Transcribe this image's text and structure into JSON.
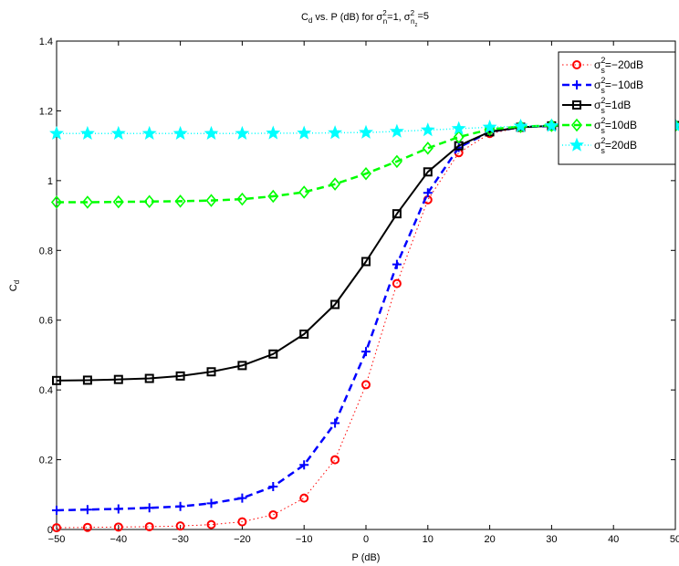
{
  "chart_data": {
    "type": "line",
    "title": {
      "prefix": "C",
      "prefix_sub": "d",
      "middle": " vs. P (dB) for σ",
      "sigma_n_sub": "n",
      "sigma_n_eq": "=1, σ",
      "sigma_nz_sub": "n",
      "sigma_nz_subsub": "z",
      "sigma_nz_eq": "=5"
    },
    "xlabel": "P (dB)",
    "ylabel": {
      "main": "C",
      "sub": "d"
    },
    "xlim": [
      -50,
      50
    ],
    "ylim": [
      0,
      1.4
    ],
    "x_ticks": [
      -50,
      -40,
      -30,
      -20,
      -10,
      0,
      10,
      20,
      30,
      40,
      50
    ],
    "x_tick_labels": [
      "−50",
      "−40",
      "−30",
      "−20",
      "−10",
      "0",
      "10",
      "20",
      "30",
      "40",
      "50"
    ],
    "y_ticks": [
      0,
      0.2,
      0.4,
      0.6,
      0.8,
      1,
      1.2,
      1.4
    ],
    "y_tick_labels": [
      "0",
      "0.2",
      "0.4",
      "0.6",
      "0.8",
      "1",
      "1.2",
      "1.4"
    ],
    "grid": false,
    "legend_position": "top-right",
    "x": [
      -50,
      -45,
      -40,
      -35,
      -30,
      -25,
      -20,
      -15,
      -10,
      -5,
      0,
      5,
      10,
      15,
      20,
      25,
      30,
      35,
      40,
      45,
      50
    ],
    "series": [
      {
        "legend_prefix": "σ",
        "legend_sub": "s",
        "legend_value": "=−20dB",
        "color": "#ff0000",
        "marker": "circle",
        "dash": "1.5,3",
        "width": 1,
        "values": [
          0.005,
          0.006,
          0.007,
          0.008,
          0.01,
          0.014,
          0.022,
          0.042,
          0.09,
          0.2,
          0.415,
          0.705,
          0.945,
          1.08,
          1.135,
          1.152,
          1.157,
          1.158,
          1.158,
          1.158,
          1.158
        ]
      },
      {
        "legend_prefix": "σ",
        "legend_sub": "s",
        "legend_value": "=−10dB",
        "color": "#0000ff",
        "marker": "plus",
        "dash": "8,5",
        "width": 2.5,
        "values": [
          0.055,
          0.057,
          0.059,
          0.062,
          0.066,
          0.075,
          0.09,
          0.123,
          0.185,
          0.305,
          0.51,
          0.76,
          0.965,
          1.095,
          1.14,
          1.153,
          1.157,
          1.158,
          1.158,
          1.158,
          1.158
        ]
      },
      {
        "legend_prefix": "σ",
        "legend_sub": "s",
        "legend_value": "=1dB",
        "color": "#000000",
        "marker": "square",
        "dash": "",
        "width": 2,
        "values": [
          0.427,
          0.428,
          0.43,
          0.433,
          0.44,
          0.452,
          0.47,
          0.503,
          0.56,
          0.645,
          0.768,
          0.905,
          1.025,
          1.1,
          1.14,
          1.153,
          1.157,
          1.158,
          1.158,
          1.158,
          1.158
        ]
      },
      {
        "legend_prefix": "σ",
        "legend_sub": "s",
        "legend_value": "=10dB",
        "color": "#00ff00",
        "marker": "diamond",
        "dash": "8,5",
        "width": 2.5,
        "values": [
          0.938,
          0.938,
          0.939,
          0.94,
          0.941,
          0.943,
          0.947,
          0.955,
          0.967,
          0.99,
          1.02,
          1.055,
          1.093,
          1.125,
          1.147,
          1.155,
          1.158,
          1.158,
          1.158,
          1.158,
          1.158
        ]
      },
      {
        "legend_prefix": "σ",
        "legend_sub": "s",
        "legend_value": "=20dB",
        "color": "#00ffff",
        "marker": "star",
        "dash": "1,2.5",
        "width": 1.5,
        "values": [
          1.135,
          1.135,
          1.135,
          1.135,
          1.135,
          1.135,
          1.135,
          1.136,
          1.136,
          1.137,
          1.138,
          1.141,
          1.145,
          1.149,
          1.153,
          1.156,
          1.157,
          1.158,
          1.158,
          1.158,
          1.158
        ]
      }
    ]
  }
}
